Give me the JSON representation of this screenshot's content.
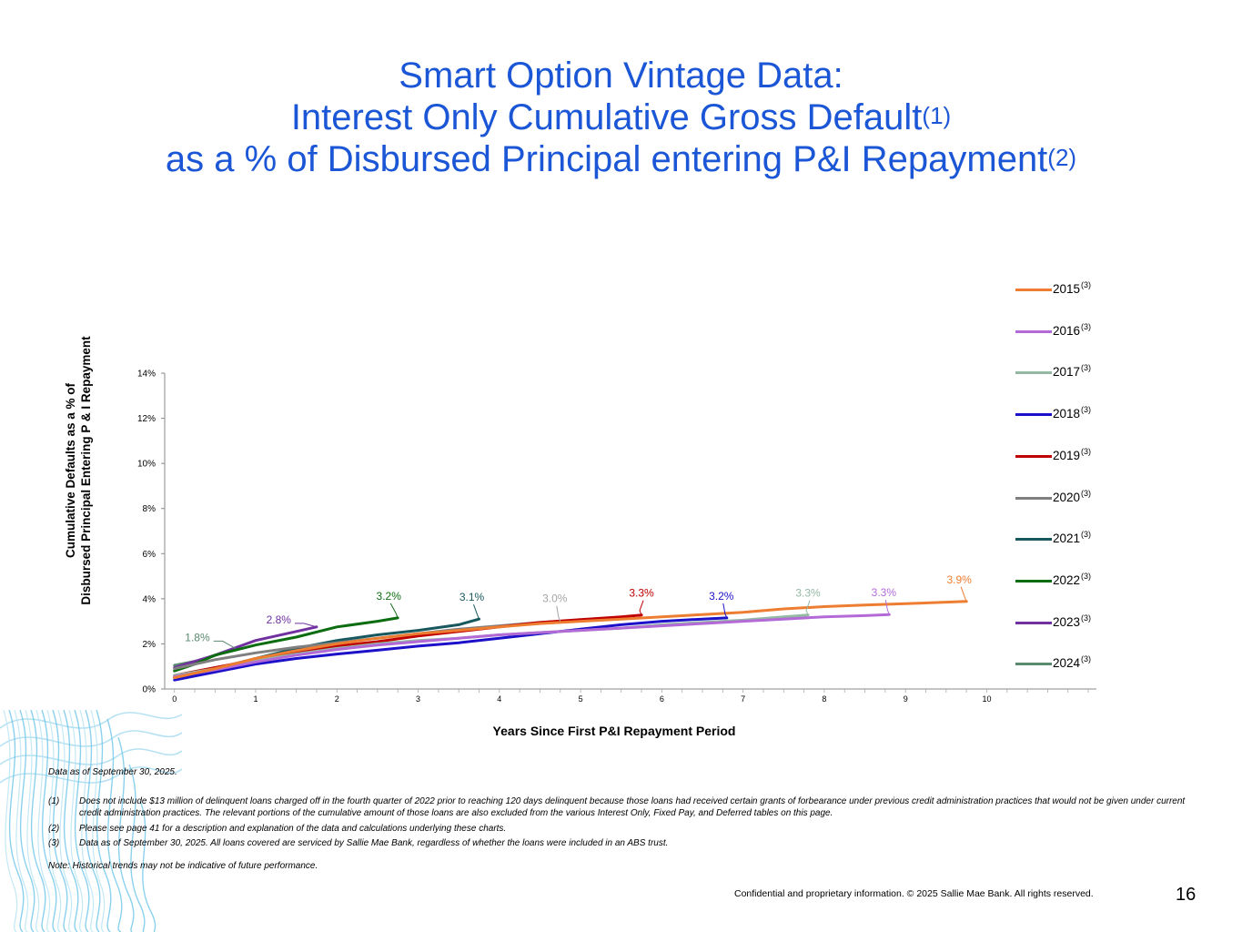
{
  "title": {
    "line1": "Smart Option Vintage Data:",
    "line2": "Interest Only Cumulative Gross Default",
    "line2_sup": "(1)",
    "line3": "as a % of Disbursed Principal entering P&I Repayment",
    "line3_sup": "(2)"
  },
  "axis": {
    "ylabel_line1": "Cumulative Defaults as a % of",
    "ylabel_line2": "Disbursed Principal  Entering P & I Repayment",
    "xlabel": "Years Since First P&I Repayment Period"
  },
  "legend_sup": "(3)",
  "chart_data": {
    "type": "line",
    "title": "Smart Option Vintage Data: Interest Only Cumulative Gross Default as a % of Disbursed Principal entering P&I Repayment",
    "xlabel": "Years Since First P&I Repayment Period",
    "ylabel": "Cumulative Defaults as a % of Disbursed Principal Entering P & I Repayment",
    "xlim": [
      -0.12,
      11.35
    ],
    "ylim": [
      0,
      14
    ],
    "x_ticks": [
      "0",
      "1",
      "2",
      "3",
      "4",
      "5",
      "6",
      "7",
      "8",
      "9",
      "10"
    ],
    "y_ticks": [
      "0%",
      "2%",
      "4%",
      "6%",
      "8%",
      "10%",
      "12%",
      "14%"
    ],
    "grid": false,
    "legend_position": "right",
    "series": [
      {
        "name": "2015",
        "color": "#ed7d31",
        "label": "3.9%",
        "label_color": "#ed7d31",
        "points": [
          [
            0,
            0.5
          ],
          [
            0.5,
            0.9
          ],
          [
            1,
            1.35
          ],
          [
            1.5,
            1.7
          ],
          [
            2,
            2.0
          ],
          [
            2.5,
            2.25
          ],
          [
            3,
            2.45
          ],
          [
            3.5,
            2.6
          ],
          [
            4,
            2.75
          ],
          [
            4.5,
            2.9
          ],
          [
            5,
            3.0
          ],
          [
            5.5,
            3.1
          ],
          [
            6,
            3.2
          ],
          [
            6.5,
            3.3
          ],
          [
            7,
            3.4
          ],
          [
            7.5,
            3.55
          ],
          [
            8,
            3.65
          ],
          [
            8.5,
            3.72
          ],
          [
            9,
            3.78
          ],
          [
            9.5,
            3.85
          ],
          [
            9.75,
            3.88
          ]
        ]
      },
      {
        "name": "2016",
        "color": "#b36ad7",
        "label": "3.3%",
        "label_color": "#b36ad7",
        "points": [
          [
            0,
            0.55
          ],
          [
            0.5,
            0.85
          ],
          [
            1,
            1.2
          ],
          [
            1.5,
            1.5
          ],
          [
            2,
            1.75
          ],
          [
            2.5,
            1.95
          ],
          [
            3,
            2.1
          ],
          [
            3.5,
            2.25
          ],
          [
            4,
            2.4
          ],
          [
            4.5,
            2.5
          ],
          [
            5,
            2.6
          ],
          [
            5.5,
            2.7
          ],
          [
            6,
            2.8
          ],
          [
            6.5,
            2.9
          ],
          [
            7,
            3.0
          ],
          [
            7.5,
            3.1
          ],
          [
            8,
            3.2
          ],
          [
            8.5,
            3.25
          ],
          [
            8.8,
            3.3
          ]
        ]
      },
      {
        "name": "2017",
        "color": "#93b9a4",
        "label": "3.3%",
        "label_color": "#93b9a4",
        "points": [
          [
            0,
            0.6
          ],
          [
            0.5,
            0.9
          ],
          [
            1,
            1.25
          ],
          [
            1.5,
            1.55
          ],
          [
            2,
            1.8
          ],
          [
            2.5,
            2.0
          ],
          [
            3,
            2.15
          ],
          [
            3.5,
            2.25
          ],
          [
            4,
            2.4
          ],
          [
            4.5,
            2.5
          ],
          [
            5,
            2.6
          ],
          [
            5.5,
            2.7
          ],
          [
            6,
            2.85
          ],
          [
            6.5,
            2.95
          ],
          [
            7,
            3.05
          ],
          [
            7.5,
            3.2
          ],
          [
            7.8,
            3.28
          ]
        ]
      },
      {
        "name": "2018",
        "color": "#1d10c9",
        "label": "3.2%",
        "label_color": "#1d10c9",
        "points": [
          [
            0,
            0.4
          ],
          [
            0.5,
            0.75
          ],
          [
            1,
            1.1
          ],
          [
            1.5,
            1.35
          ],
          [
            2,
            1.55
          ],
          [
            2.5,
            1.72
          ],
          [
            3,
            1.9
          ],
          [
            3.5,
            2.05
          ],
          [
            4,
            2.25
          ],
          [
            4.5,
            2.45
          ],
          [
            5,
            2.65
          ],
          [
            5.5,
            2.85
          ],
          [
            6,
            3.0
          ],
          [
            6.5,
            3.1
          ],
          [
            6.8,
            3.15
          ]
        ]
      },
      {
        "name": "2019",
        "color": "#c00000",
        "label": "3.3%",
        "label_color": "#c00000",
        "points": [
          [
            0,
            0.6
          ],
          [
            0.5,
            0.95
          ],
          [
            1,
            1.3
          ],
          [
            1.5,
            1.6
          ],
          [
            2,
            1.9
          ],
          [
            2.5,
            2.1
          ],
          [
            3,
            2.35
          ],
          [
            3.5,
            2.55
          ],
          [
            4,
            2.75
          ],
          [
            4.5,
            2.95
          ],
          [
            5,
            3.08
          ],
          [
            5.5,
            3.2
          ],
          [
            5.75,
            3.28
          ]
        ]
      },
      {
        "name": "2020",
        "color": "#7f7f7f",
        "label": "3.0%",
        "label_color": "#a5a5a5",
        "points": [
          [
            0,
            0.9
          ],
          [
            0.5,
            1.3
          ],
          [
            1,
            1.6
          ],
          [
            1.5,
            1.85
          ],
          [
            2,
            2.05
          ],
          [
            2.5,
            2.25
          ],
          [
            3,
            2.45
          ],
          [
            3.5,
            2.65
          ],
          [
            4,
            2.8
          ],
          [
            4.5,
            2.95
          ],
          [
            4.75,
            3.0
          ]
        ]
      },
      {
        "name": "2021",
        "color": "#17585f",
        "label": "3.1%",
        "label_color": "#17585f",
        "points": [
          [
            0,
            0.5
          ],
          [
            0.5,
            0.9
          ],
          [
            1,
            1.35
          ],
          [
            1.5,
            1.8
          ],
          [
            2,
            2.15
          ],
          [
            2.5,
            2.4
          ],
          [
            3,
            2.6
          ],
          [
            3.5,
            2.85
          ],
          [
            3.75,
            3.1
          ]
        ]
      },
      {
        "name": "2022",
        "color": "#0c6d10",
        "label": "3.2%",
        "label_color": "#0c6d10",
        "points": [
          [
            0,
            0.8
          ],
          [
            0.25,
            1.1
          ],
          [
            0.5,
            1.5
          ],
          [
            1,
            1.95
          ],
          [
            1.5,
            2.3
          ],
          [
            2,
            2.75
          ],
          [
            2.5,
            3.0
          ],
          [
            2.75,
            3.15
          ]
        ]
      },
      {
        "name": "2023",
        "color": "#7030a0",
        "label": "2.8%",
        "label_color": "#7030a0",
        "points": [
          [
            0,
            0.95
          ],
          [
            0.5,
            1.5
          ],
          [
            1,
            2.15
          ],
          [
            1.5,
            2.55
          ],
          [
            1.75,
            2.75
          ]
        ]
      },
      {
        "name": "2024",
        "color": "#5a8a6e",
        "label": "1.8%",
        "label_color": "#5a8a6e",
        "points": [
          [
            0,
            1.05
          ],
          [
            0.35,
            1.3
          ],
          [
            0.75,
            1.8
          ]
        ]
      }
    ]
  },
  "footnotes": {
    "as_of": "Data as of September 30, 2025.",
    "items": [
      {
        "num": "(1)",
        "text": "Does not include $13 million of delinquent loans charged off in the fourth quarter of 2022 prior to reaching 120 days delinquent because those loans had received certain grants of forbearance under previous credit administration practices that would not be given under current credit administration practices. The relevant portions of the cumulative amount of those loans are also excluded from the various Interest Only, Fixed Pay, and Deferred tables on this page."
      },
      {
        "num": "(2)",
        "text": "Please see page 41 for a description and explanation of the data and calculations underlying these charts."
      },
      {
        "num": "(3)",
        "text": "Data as of September 30, 2025. All loans covered are serviced by Sallie Mae Bank, regardless of whether the loans were included in an ABS trust."
      }
    ],
    "note": "Note: Historical trends may not be indicative of future performance."
  },
  "confidential": "Confidential and proprietary information. © 2025 Sallie Mae Bank. All rights reserved.",
  "page_number": "16"
}
